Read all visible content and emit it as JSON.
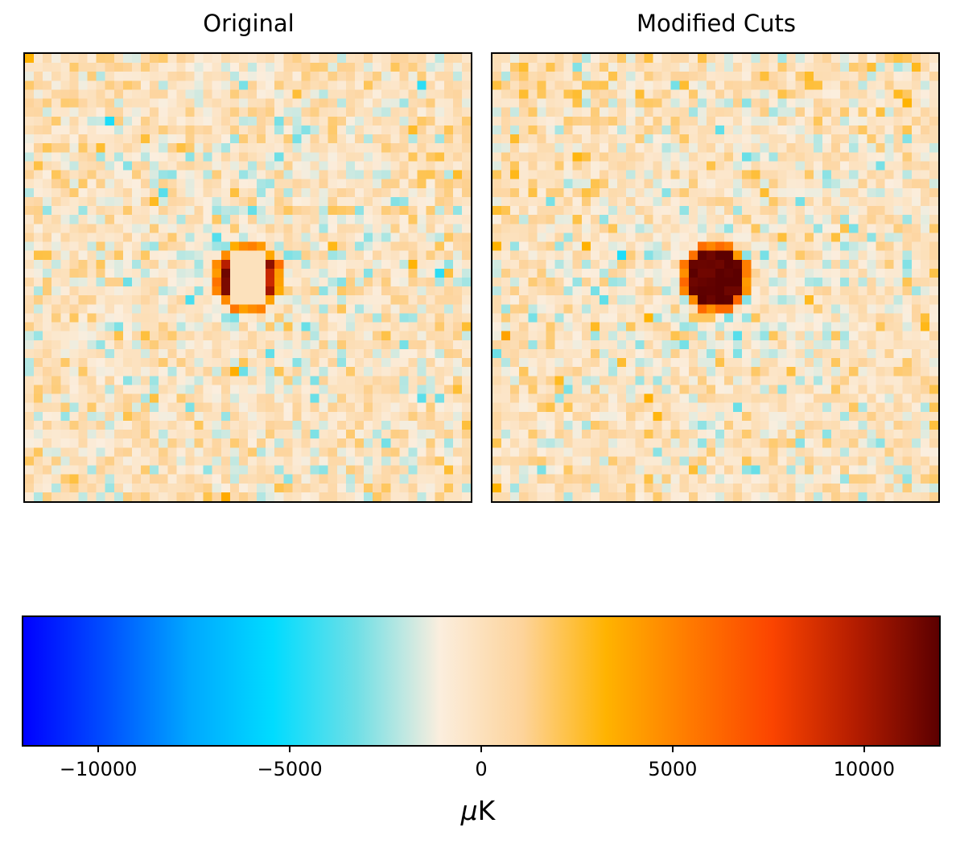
{
  "chart_data": [
    {
      "type": "heatmap",
      "title": "Original",
      "grid_size": [
        50,
        50
      ],
      "description_of_values": "noise field around 0 uK with a bright source at center partially cut (cream hole in middle)",
      "center_feature": "cut",
      "xticks": [],
      "yticks": []
    },
    {
      "type": "heatmap",
      "title": "Modified Cuts",
      "grid_size": [
        50,
        50
      ],
      "center_feature": "source",
      "xticks": [],
      "yticks": []
    },
    {
      "type": "colorbar",
      "label": "μK",
      "range": [
        -12000,
        12000
      ],
      "ticks": [
        -10000,
        -5000,
        0,
        5000,
        10000
      ],
      "tick_labels": [
        "−10000",
        "−5000",
        "0",
        "5000",
        "10000"
      ],
      "colormap": [
        "#0000ff",
        "#0050ff",
        "#00a8ff",
        "#00dcff",
        "#6fdfe6",
        "#fbeede",
        "#fdd39a",
        "#ffb300",
        "#ff7a00",
        "#fb4400",
        "#b31c00",
        "#5c0000"
      ]
    }
  ]
}
